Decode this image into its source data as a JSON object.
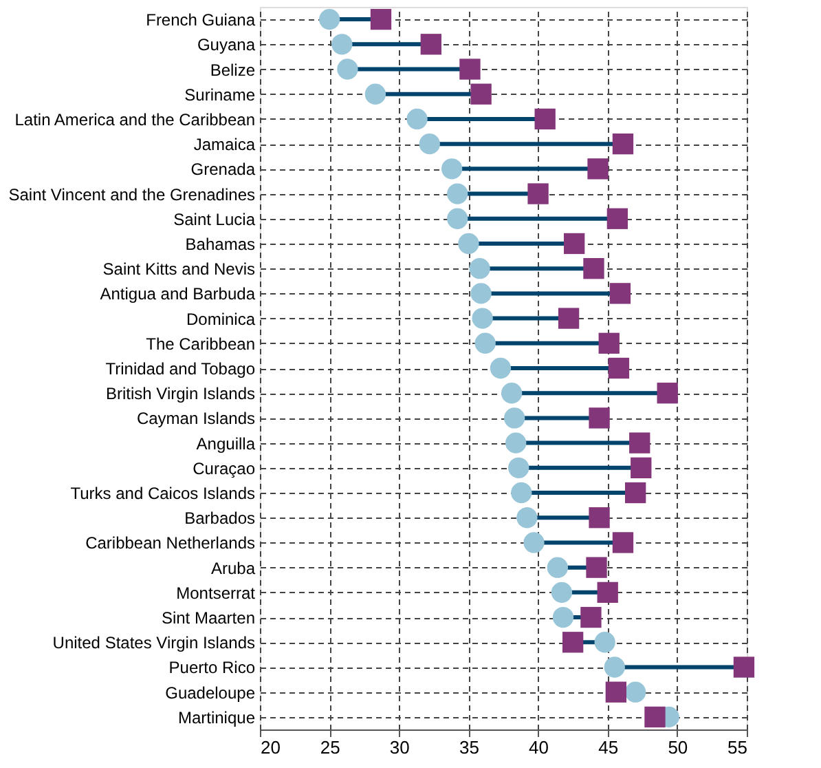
{
  "chart_data": {
    "type": "scatter",
    "orientation": "horizontal",
    "categories": [
      "French Guiana",
      "Guyana",
      "Belize",
      "Suriname",
      "Latin America and the Caribbean",
      "Jamaica",
      "Grenada",
      "Saint Vincent and the Grenadines",
      "Saint Lucia",
      "Bahamas",
      "Saint Kitts and Nevis",
      "Antigua and Barbuda",
      "Dominica",
      "The Caribbean",
      "Trinidad and Tobago",
      "British Virgin Islands",
      "Cayman Islands",
      "Anguilla",
      "Curaçao",
      "Turks and Caicos Islands",
      "Barbados",
      "Caribbean Netherlands",
      "Aruba",
      "Montserrat",
      "Sint Maarten",
      "United States Virgin Islands",
      "Puerto Rico",
      "Guadeloupe",
      "Martinique"
    ],
    "series": [
      {
        "color": "#98c5d8",
        "marker": "circle",
        "values": [
          25.0,
          25.9,
          26.3,
          28.3,
          31.3,
          32.2,
          33.8,
          34.2,
          34.2,
          35.0,
          35.8,
          35.9,
          36.0,
          36.2,
          37.3,
          38.1,
          38.3,
          38.4,
          38.6,
          38.8,
          39.2,
          39.7,
          41.4,
          41.7,
          41.8,
          44.8,
          45.5,
          47.0,
          49.4
        ]
      },
      {
        "color": "#84367a",
        "marker": "square",
        "values": [
          28.7,
          32.3,
          35.1,
          35.9,
          40.5,
          46.1,
          44.3,
          40.0,
          45.7,
          42.6,
          44.0,
          45.9,
          42.2,
          45.1,
          45.8,
          49.3,
          44.4,
          47.3,
          47.4,
          47.0,
          44.4,
          46.1,
          44.2,
          45.0,
          43.8,
          42.5,
          54.8,
          45.6,
          48.4
        ]
      }
    ],
    "xlim": [
      20,
      55
    ],
    "xticks": [
      20,
      25,
      30,
      35,
      40,
      45,
      50,
      55
    ],
    "grid": true,
    "line_style": "dashed"
  }
}
